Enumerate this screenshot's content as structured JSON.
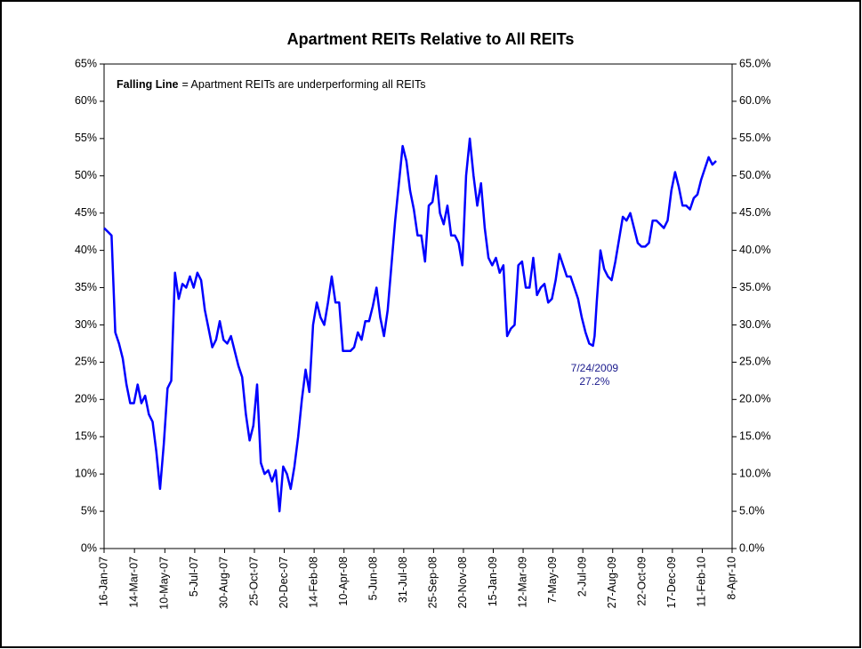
{
  "chart_data": {
    "type": "line",
    "title": "Apartment REITs Relative to All REITs",
    "note_bold": "Falling Line",
    "note": "= Apartment REITs are underperforming all REITs",
    "annotation": {
      "x": "2009-07-24",
      "value": 27.2,
      "lines": [
        "7/24/2009",
        "27.2%"
      ]
    },
    "xlim": [
      "2007-01-16",
      "2010-04-08"
    ],
    "xticks": [
      {
        "value": "2007-01-16",
        "label": "16-Jan-07"
      },
      {
        "value": "2007-03-14",
        "label": "14-Mar-07"
      },
      {
        "value": "2007-05-10",
        "label": "10-May-07"
      },
      {
        "value": "2007-07-05",
        "label": "5-Jul-07"
      },
      {
        "value": "2007-08-30",
        "label": "30-Aug-07"
      },
      {
        "value": "2007-10-25",
        "label": "25-Oct-07"
      },
      {
        "value": "2007-12-20",
        "label": "20-Dec-07"
      },
      {
        "value": "2008-02-14",
        "label": "14-Feb-08"
      },
      {
        "value": "2008-04-10",
        "label": "10-Apr-08"
      },
      {
        "value": "2008-06-05",
        "label": "5-Jun-08"
      },
      {
        "value": "2008-07-31",
        "label": "31-Jul-08"
      },
      {
        "value": "2008-09-25",
        "label": "25-Sep-08"
      },
      {
        "value": "2008-11-20",
        "label": "20-Nov-08"
      },
      {
        "value": "2009-01-15",
        "label": "15-Jan-09"
      },
      {
        "value": "2009-03-12",
        "label": "12-Mar-09"
      },
      {
        "value": "2009-05-07",
        "label": "7-May-09"
      },
      {
        "value": "2009-07-02",
        "label": "2-Jul-09"
      },
      {
        "value": "2009-08-27",
        "label": "27-Aug-09"
      },
      {
        "value": "2009-10-22",
        "label": "22-Oct-09"
      },
      {
        "value": "2009-12-17",
        "label": "17-Dec-09"
      },
      {
        "value": "2010-02-11",
        "label": "11-Feb-10"
      },
      {
        "value": "2010-04-08",
        "label": "8-Apr-10"
      }
    ],
    "ylim": [
      0,
      65
    ],
    "yticks": [
      {
        "value": 0,
        "label": "0%"
      },
      {
        "value": 5,
        "label": "5%"
      },
      {
        "value": 10,
        "label": "10%"
      },
      {
        "value": 15,
        "label": "15%"
      },
      {
        "value": 20,
        "label": "20%"
      },
      {
        "value": 25,
        "label": "25%"
      },
      {
        "value": 30,
        "label": "30%"
      },
      {
        "value": 35,
        "label": "35%"
      },
      {
        "value": 40,
        "label": "40%"
      },
      {
        "value": 45,
        "label": "45%"
      },
      {
        "value": 50,
        "label": "50%"
      },
      {
        "value": 55,
        "label": "55%"
      },
      {
        "value": 60,
        "label": "60%"
      },
      {
        "value": 65,
        "label": "65%"
      }
    ],
    "y2lim": [
      0,
      65
    ],
    "y2ticks": [
      {
        "value": 0,
        "label": "0.0%"
      },
      {
        "value": 5,
        "label": "5.0%"
      },
      {
        "value": 10,
        "label": "10.0%"
      },
      {
        "value": 15,
        "label": "15.0%"
      },
      {
        "value": 20,
        "label": "20.0%"
      },
      {
        "value": 25,
        "label": "25.0%"
      },
      {
        "value": 30,
        "label": "30.0%"
      },
      {
        "value": 35,
        "label": "35.0%"
      },
      {
        "value": 40,
        "label": "40.0%"
      },
      {
        "value": 45,
        "label": "45.0%"
      },
      {
        "value": 50,
        "label": "50.0%"
      },
      {
        "value": 55,
        "label": "55.0%"
      },
      {
        "value": 60,
        "label": "60.0%"
      },
      {
        "value": 65,
        "label": "65.0%"
      }
    ],
    "grid": false,
    "color": "#0000ff",
    "x": [
      "2007-01-16",
      "2007-01-23",
      "2007-01-30",
      "2007-02-06",
      "2007-02-13",
      "2007-02-20",
      "2007-02-27",
      "2007-03-06",
      "2007-03-13",
      "2007-03-20",
      "2007-03-27",
      "2007-04-03",
      "2007-04-10",
      "2007-04-17",
      "2007-04-24",
      "2007-05-01",
      "2007-05-08",
      "2007-05-15",
      "2007-05-22",
      "2007-05-29",
      "2007-06-05",
      "2007-06-12",
      "2007-06-19",
      "2007-06-26",
      "2007-07-03",
      "2007-07-10",
      "2007-07-17",
      "2007-07-24",
      "2007-07-31",
      "2007-08-07",
      "2007-08-14",
      "2007-08-21",
      "2007-08-28",
      "2007-09-04",
      "2007-09-11",
      "2007-09-18",
      "2007-09-25",
      "2007-10-02",
      "2007-10-09",
      "2007-10-16",
      "2007-10-23",
      "2007-10-30",
      "2007-11-06",
      "2007-11-13",
      "2007-11-20",
      "2007-11-27",
      "2007-12-04",
      "2007-12-11",
      "2007-12-18",
      "2007-12-25",
      "2008-01-01",
      "2008-01-08",
      "2008-01-15",
      "2008-01-22",
      "2008-01-29",
      "2008-02-05",
      "2008-02-12",
      "2008-02-19",
      "2008-02-26",
      "2008-03-04",
      "2008-03-11",
      "2008-03-18",
      "2008-03-25",
      "2008-04-01",
      "2008-04-08",
      "2008-04-15",
      "2008-04-22",
      "2008-04-29",
      "2008-05-06",
      "2008-05-13",
      "2008-05-20",
      "2008-05-27",
      "2008-06-03",
      "2008-06-10",
      "2008-06-17",
      "2008-06-24",
      "2008-07-01",
      "2008-07-08",
      "2008-07-15",
      "2008-07-22",
      "2008-07-29",
      "2008-08-05",
      "2008-08-12",
      "2008-08-19",
      "2008-08-26",
      "2008-09-02",
      "2008-09-09",
      "2008-09-16",
      "2008-09-23",
      "2008-09-30",
      "2008-10-07",
      "2008-10-14",
      "2008-10-21",
      "2008-10-28",
      "2008-11-04",
      "2008-11-11",
      "2008-11-18",
      "2008-11-25",
      "2008-12-02",
      "2008-12-09",
      "2008-12-16",
      "2008-12-23",
      "2008-12-30",
      "2009-01-06",
      "2009-01-13",
      "2009-01-20",
      "2009-01-27",
      "2009-02-03",
      "2009-02-10",
      "2009-02-17",
      "2009-02-24",
      "2009-03-03",
      "2009-03-10",
      "2009-03-17",
      "2009-03-24",
      "2009-03-31",
      "2009-04-07",
      "2009-04-14",
      "2009-04-21",
      "2009-04-28",
      "2009-05-05",
      "2009-05-12",
      "2009-05-19",
      "2009-05-26",
      "2009-06-02",
      "2009-06-09",
      "2009-06-16",
      "2009-06-23",
      "2009-06-30",
      "2009-07-07",
      "2009-07-14",
      "2009-07-21",
      "2009-07-24",
      "2009-07-28",
      "2009-08-04",
      "2009-08-11",
      "2009-08-18",
      "2009-08-25",
      "2009-09-01",
      "2009-09-08",
      "2009-09-15",
      "2009-09-22",
      "2009-09-29",
      "2009-10-06",
      "2009-10-13",
      "2009-10-20",
      "2009-10-27",
      "2009-11-03",
      "2009-11-10",
      "2009-11-17",
      "2009-11-24",
      "2009-12-01",
      "2009-12-08",
      "2009-12-15",
      "2009-12-22",
      "2009-12-29",
      "2010-01-05",
      "2010-01-12",
      "2010-01-19",
      "2010-01-26",
      "2010-02-02",
      "2010-02-09",
      "2010-02-16",
      "2010-02-23",
      "2010-03-02",
      "2010-03-09"
    ],
    "values": [
      43,
      42.5,
      42,
      29,
      27.5,
      25.5,
      22,
      19.5,
      19.5,
      22,
      19.5,
      20.5,
      18,
      17,
      13,
      8,
      14,
      21.5,
      22.5,
      37,
      33.5,
      35.5,
      35,
      36.5,
      35,
      37,
      36,
      32,
      29.5,
      27,
      28,
      30.5,
      28,
      27.5,
      28.5,
      26.5,
      24.5,
      23,
      18,
      14.5,
      16.5,
      22,
      11.5,
      10,
      10.5,
      9,
      10.5,
      5,
      11,
      10,
      8,
      11,
      15,
      20,
      24,
      21,
      30,
      33,
      31,
      30,
      33,
      36.5,
      33,
      33,
      26.5,
      26.5,
      26.5,
      27,
      29,
      28,
      30.5,
      30.5,
      32.5,
      35,
      31,
      28.5,
      32,
      38,
      44,
      49,
      54,
      52,
      48,
      45.5,
      42,
      42,
      38.5,
      46,
      46.5,
      50,
      45,
      43.5,
      46,
      42,
      42,
      41,
      38,
      50,
      55,
      50,
      46,
      49,
      43,
      39,
      38,
      39,
      37,
      38,
      28.5,
      29.5,
      30,
      38,
      38.5,
      35,
      35,
      39,
      34,
      35,
      35.5,
      33,
      33.5,
      36,
      39.5,
      38,
      36.5,
      36.5,
      35,
      33.5,
      31,
      29,
      27.5,
      27.2,
      28.5,
      33,
      40,
      37.5,
      36.5,
      36,
      38.5,
      41.5,
      44.5,
      44,
      45,
      43,
      41,
      40.5,
      40.5,
      41,
      44,
      44,
      43.5,
      43,
      44,
      48,
      50.5,
      48.5,
      46,
      46,
      45.5,
      47,
      47.5,
      49.5,
      51,
      52.5,
      51.5,
      52
    ]
  }
}
